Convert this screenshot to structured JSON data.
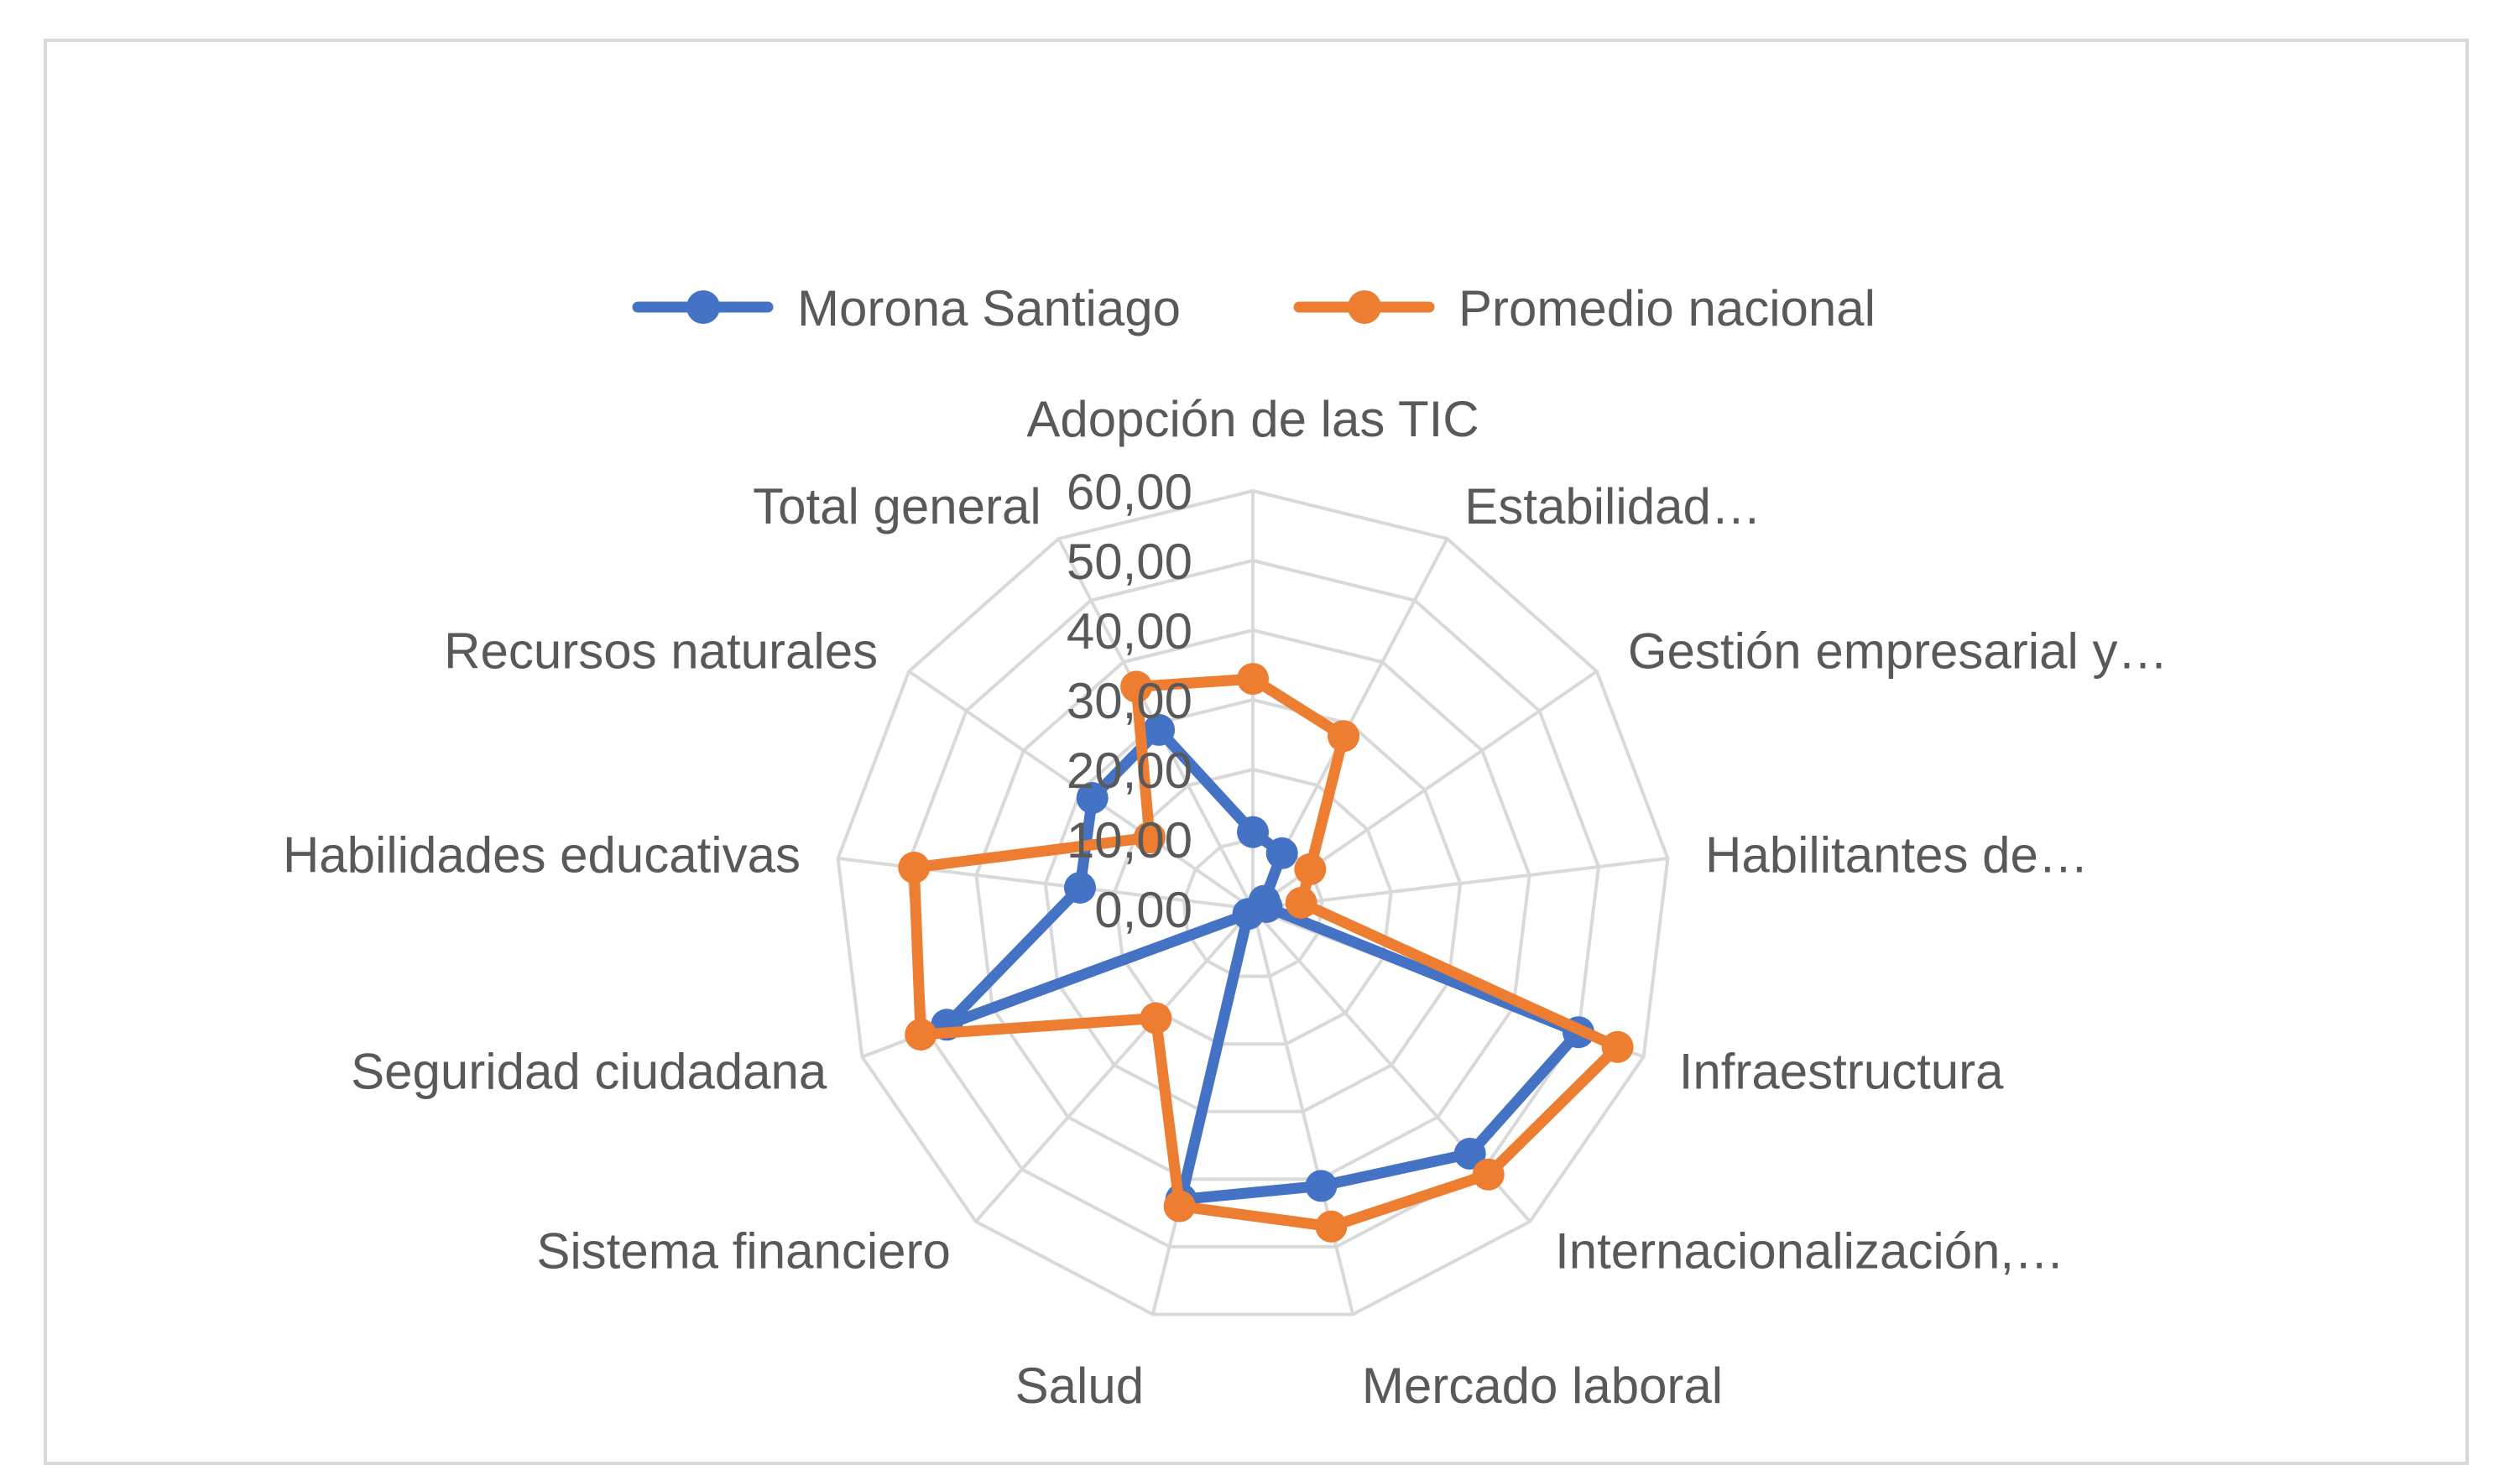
{
  "chart_data": {
    "type": "radar",
    "title": "",
    "categories": [
      "Adopción de las TIC",
      "Estabilidad…",
      "Gestión empresarial y…",
      "Habilitantes de…",
      "Infraestructura",
      "Internacionalización,…",
      "Mercado laboral",
      "Salud",
      "Sistema financiero",
      "Seguridad ciudadana",
      "Habilidades educativas",
      "Recursos naturales",
      "Total general"
    ],
    "ticks": [
      "0,00",
      "10,00",
      "20,00",
      "30,00",
      "40,00",
      "50,00",
      "60,00"
    ],
    "rmax": 60,
    "grid": true,
    "legend_position": "top",
    "series": [
      {
        "name": "Morona Santiago",
        "color": "#4472c4",
        "values": [
          11,
          9,
          2,
          2,
          50,
          47,
          41,
          43,
          1,
          47,
          25,
          28,
          29
        ]
      },
      {
        "name": "Promedio nacional",
        "color": "#ed7d31",
        "values": [
          33,
          28,
          10,
          7,
          56,
          51,
          47,
          44,
          21,
          51,
          49,
          18,
          36
        ]
      }
    ]
  }
}
